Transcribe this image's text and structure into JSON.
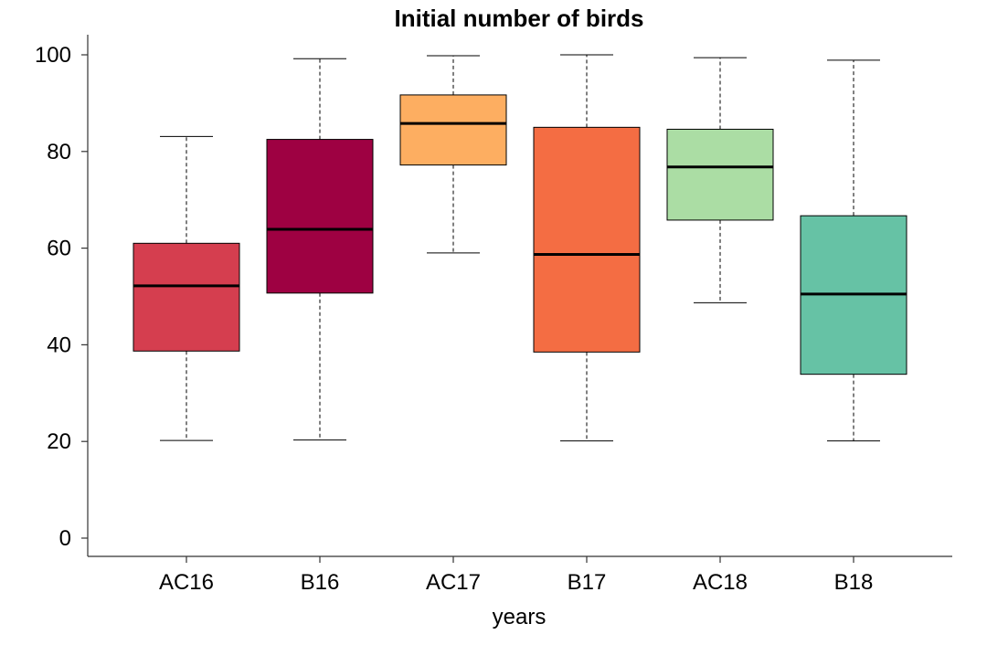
{
  "chart_data": {
    "type": "boxplot",
    "title": "Initial number of birds",
    "xlabel": "years",
    "ylabel": "",
    "ylim": [
      -4,
      104
    ],
    "yticks": [
      0,
      20,
      40,
      60,
      80,
      100
    ],
    "categories": [
      "AC16",
      "B16",
      "AC17",
      "B17",
      "AC18",
      "B18"
    ],
    "boxes": [
      {
        "label": "AC16",
        "whisker_low": 20.2,
        "q1": 38.7,
        "median": 52.2,
        "q3": 61.0,
        "whisker_high": 83.1,
        "color": "#D53E4F"
      },
      {
        "label": "B16",
        "whisker_low": 20.3,
        "q1": 50.7,
        "median": 63.9,
        "q3": 82.5,
        "whisker_high": 99.2,
        "color": "#9E0142"
      },
      {
        "label": "AC17",
        "whisker_low": 59.0,
        "q1": 77.2,
        "median": 85.8,
        "q3": 91.7,
        "whisker_high": 99.8,
        "color": "#FDAE61"
      },
      {
        "label": "B17",
        "whisker_low": 20.1,
        "q1": 38.5,
        "median": 58.7,
        "q3": 85.0,
        "whisker_high": 100.0,
        "color": "#F46D43"
      },
      {
        "label": "AC18",
        "whisker_low": 48.7,
        "q1": 65.8,
        "median": 76.8,
        "q3": 84.6,
        "whisker_high": 99.4,
        "color": "#ABDDA4"
      },
      {
        "label": "B18",
        "whisker_low": 20.1,
        "q1": 33.9,
        "median": 50.5,
        "q3": 66.7,
        "whisker_high": 98.9,
        "color": "#66C2A5"
      }
    ],
    "grid": false,
    "legend": "none"
  }
}
